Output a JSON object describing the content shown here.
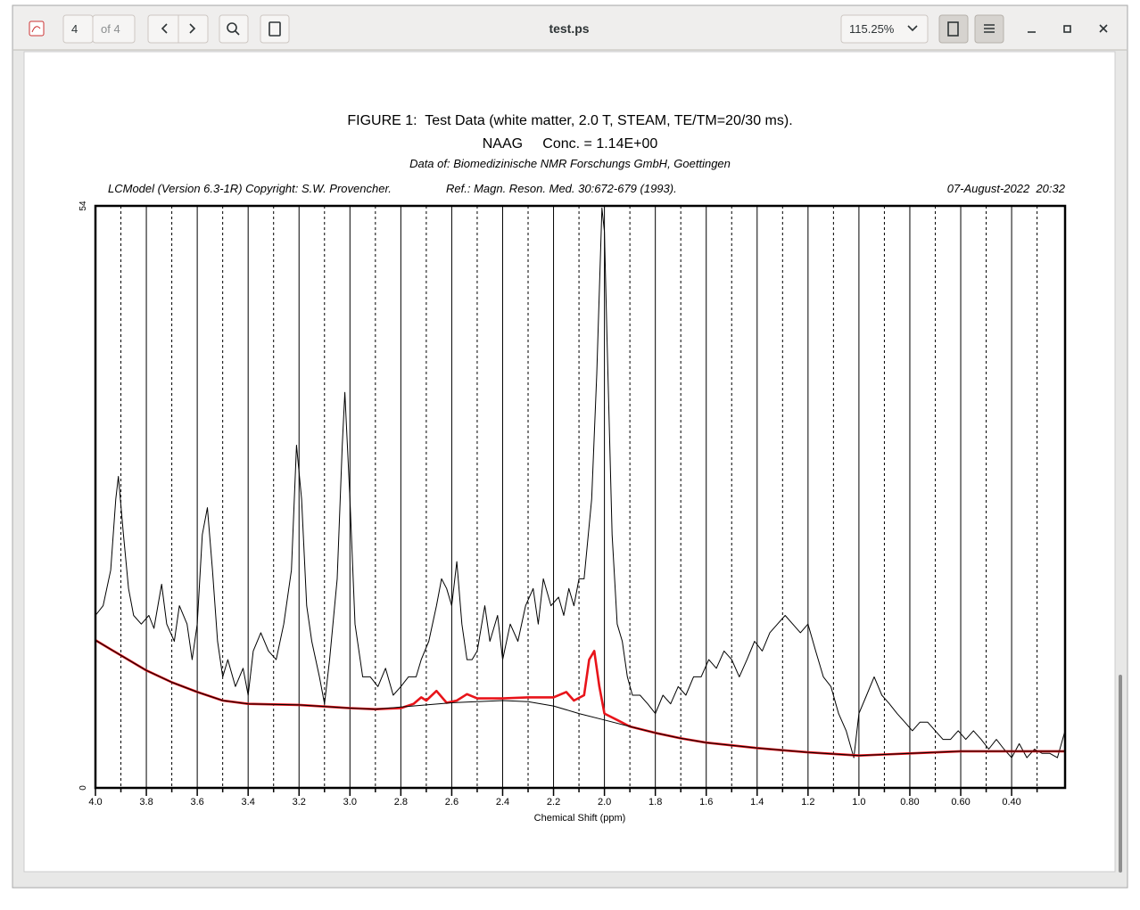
{
  "toolbar": {
    "page_input": "4",
    "page_count": "of 4",
    "file_title": "test.ps",
    "zoom": "115.25%"
  },
  "chart_data": {
    "type": "line",
    "title": "FIGURE 1:  Test Data (white matter, 2.0 T, STEAM, TE/TM=20/30 ms).",
    "subtitle": "NAAG     Conc. = 1.14E+00",
    "source": "Data of: Biomedizinische NMR Forschungs GmbH, Goettingen",
    "header_left": "LCModel (Version 6.3-1R) Copyright: S.W. Provencher.",
    "header_center": "Ref.: Magn. Reson. Med. 30:672-679 (1993).",
    "header_right": "07-August-2022  20:32",
    "xlabel": "Chemical Shift (ppm)",
    "xlim": [
      4.0,
      0.19
    ],
    "ylim": [
      0,
      54
    ],
    "xticks": [
      {
        "value": 4,
        "label": "4.0"
      },
      3.8,
      3.6,
      3.4,
      3.2,
      {
        "value": 3,
        "label": "3.0"
      },
      2.8,
      2.6,
      2.4,
      2.2,
      {
        "value": 2,
        "label": "2.0"
      },
      1.8,
      1.6,
      1.4,
      1.2,
      {
        "value": 1,
        "label": "1.0"
      },
      {
        "value": 0.8,
        "label": "0.80"
      },
      {
        "value": 0.6,
        "label": "0.60"
      },
      {
        "value": 0.4,
        "label": "0.40"
      }
    ],
    "minor_xticks": [
      3.9,
      3.7,
      3.5,
      3.3,
      3.1,
      2.9,
      2.7,
      2.5,
      2.3,
      2.1,
      1.9,
      1.7,
      1.5,
      1.3,
      1.1,
      0.9,
      0.7,
      0.5,
      0.3
    ],
    "yticks": [
      0,
      54
    ],
    "series": [
      {
        "color": "#000000",
        "x": [
          4.0,
          3.97,
          3.94,
          3.92,
          3.91,
          3.89,
          3.87,
          3.85,
          3.82,
          3.79,
          3.77,
          3.74,
          3.72,
          3.69,
          3.67,
          3.64,
          3.62,
          3.6,
          3.58,
          3.56,
          3.54,
          3.52,
          3.5,
          3.48,
          3.45,
          3.42,
          3.4,
          3.38,
          3.35,
          3.32,
          3.29,
          3.26,
          3.23,
          3.21,
          3.19,
          3.17,
          3.15,
          3.12,
          3.1,
          3.08,
          3.05,
          3.03,
          3.02,
          3.0,
          2.98,
          2.95,
          2.92,
          2.89,
          2.86,
          2.83,
          2.8,
          2.77,
          2.74,
          2.72,
          2.69,
          2.66,
          2.64,
          2.62,
          2.6,
          2.58,
          2.56,
          2.54,
          2.52,
          2.5,
          2.47,
          2.45,
          2.42,
          2.4,
          2.37,
          2.34,
          2.31,
          2.28,
          2.26,
          2.24,
          2.21,
          2.18,
          2.16,
          2.14,
          2.12,
          2.1,
          2.08,
          2.05,
          2.03,
          2.01,
          2.0,
          1.99,
          1.97,
          1.95,
          1.93,
          1.91,
          1.89,
          1.86,
          1.83,
          1.8,
          1.77,
          1.74,
          1.71,
          1.68,
          1.65,
          1.62,
          1.59,
          1.56,
          1.53,
          1.5,
          1.47,
          1.44,
          1.41,
          1.38,
          1.35,
          1.32,
          1.29,
          1.26,
          1.23,
          1.2,
          1.17,
          1.14,
          1.11,
          1.08,
          1.05,
          1.02,
          1.0,
          0.97,
          0.94,
          0.91,
          0.88,
          0.85,
          0.82,
          0.79,
          0.76,
          0.73,
          0.7,
          0.67,
          0.64,
          0.61,
          0.58,
          0.55,
          0.52,
          0.49,
          0.46,
          0.43,
          0.4,
          0.37,
          0.34,
          0.31,
          0.28,
          0.25,
          0.22,
          0.19
        ],
        "values": [
          16.0,
          16.9,
          20.2,
          26.8,
          28.9,
          23.5,
          18.5,
          16.0,
          15.2,
          16.0,
          14.8,
          18.9,
          15.2,
          13.6,
          16.9,
          15.2,
          11.9,
          15.2,
          23.5,
          26.0,
          20.2,
          13.6,
          10.3,
          11.9,
          9.4,
          11.1,
          8.6,
          12.7,
          14.4,
          12.7,
          11.9,
          15.2,
          20.2,
          31.8,
          26.8,
          16.9,
          13.6,
          10.3,
          7.8,
          11.9,
          19.4,
          31.8,
          36.7,
          26.8,
          15.2,
          10.3,
          10.3,
          9.4,
          11.1,
          8.6,
          9.4,
          10.3,
          10.3,
          11.9,
          13.6,
          16.9,
          19.4,
          18.5,
          16.9,
          21.0,
          15.2,
          11.9,
          11.9,
          12.7,
          16.9,
          13.6,
          16.0,
          11.9,
          15.2,
          13.6,
          16.9,
          18.5,
          15.2,
          19.4,
          16.9,
          17.7,
          16.0,
          18.5,
          16.9,
          19.4,
          19.4,
          26.8,
          38.4,
          53.8,
          51.6,
          41.7,
          23.5,
          15.2,
          13.6,
          10.3,
          8.6,
          8.6,
          7.8,
          6.9,
          8.6,
          7.8,
          9.4,
          8.6,
          10.3,
          10.3,
          11.9,
          11.1,
          12.7,
          11.9,
          10.3,
          11.9,
          13.6,
          12.7,
          14.4,
          15.2,
          16.0,
          15.2,
          14.4,
          15.2,
          12.7,
          10.3,
          9.4,
          6.9,
          5.3,
          2.8,
          6.9,
          8.6,
          10.3,
          8.6,
          7.8,
          6.9,
          6.1,
          5.3,
          6.1,
          6.1,
          5.3,
          4.5,
          4.5,
          5.3,
          4.5,
          5.3,
          4.5,
          3.6,
          4.5,
          3.6,
          2.8,
          4.1,
          2.8,
          3.6,
          3.2,
          3.2,
          2.8,
          5.3
        ]
      },
      {
        "color": "#e8141a",
        "x": [
          4.0,
          3.9,
          3.8,
          3.7,
          3.6,
          3.5,
          3.4,
          3.2,
          3.0,
          2.9,
          2.8,
          2.75,
          2.72,
          2.7,
          2.66,
          2.62,
          2.58,
          2.54,
          2.5,
          2.4,
          2.3,
          2.2,
          2.15,
          2.12,
          2.08,
          2.06,
          2.04,
          2.02,
          2.0,
          1.95,
          1.9,
          1.8,
          1.7,
          1.6,
          1.4,
          1.2,
          1.0,
          0.9,
          0.8,
          0.6,
          0.4,
          0.19
        ],
        "values": [
          13.7,
          12.3,
          10.9,
          9.8,
          8.9,
          8.1,
          7.8,
          7.7,
          7.4,
          7.3,
          7.4,
          7.8,
          8.4,
          8.1,
          9.0,
          7.9,
          8.1,
          8.7,
          8.3,
          8.3,
          8.4,
          8.4,
          8.9,
          8.1,
          8.6,
          11.9,
          12.7,
          9.4,
          6.9,
          6.3,
          5.7,
          5.1,
          4.6,
          4.2,
          3.7,
          3.3,
          3.0,
          3.1,
          3.2,
          3.4,
          3.4,
          3.4
        ]
      },
      {
        "color": "#000000",
        "x": [
          4.0,
          3.9,
          3.8,
          3.7,
          3.6,
          3.5,
          3.4,
          3.2,
          3.0,
          2.9,
          2.8,
          2.6,
          2.4,
          2.3,
          2.2,
          2.1,
          2.0,
          1.9,
          1.8,
          1.7,
          1.6,
          1.4,
          1.2,
          1.0,
          0.9,
          0.8,
          0.6,
          0.4,
          0.19
        ],
        "values": [
          13.7,
          12.3,
          10.9,
          9.8,
          8.9,
          8.1,
          7.8,
          7.7,
          7.4,
          7.3,
          7.5,
          7.9,
          8.1,
          8.0,
          7.6,
          6.9,
          6.3,
          5.7,
          5.1,
          4.6,
          4.2,
          3.7,
          3.3,
          3.0,
          3.1,
          3.2,
          3.4,
          3.4,
          3.4
        ]
      }
    ]
  }
}
